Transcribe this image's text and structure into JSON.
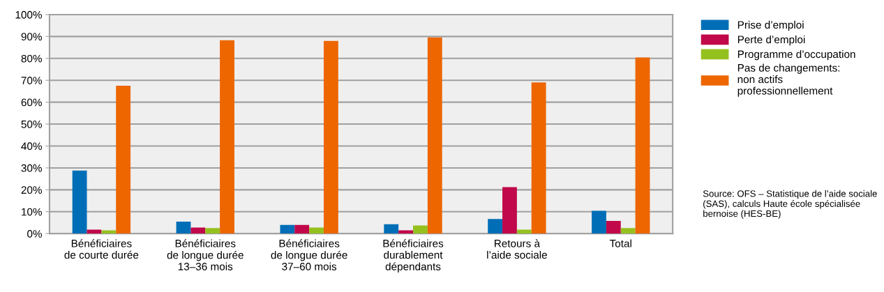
{
  "chart_data": {
    "type": "bar",
    "categories": [
      "Bénéficiaires\nde courte durée",
      "Bénéficiaires\nde longue durée\n13–36 mois",
      "Bénéficiaires\nde longue durée\n37–60 mois",
      "Bénéficiaires\ndurablement\ndépendants",
      "Retours à\nl’aide sociale",
      "Total"
    ],
    "series": [
      {
        "name": "Prise d’emploi",
        "color": "#006eb7",
        "values": [
          28.8,
          5.5,
          4.0,
          4.3,
          6.7,
          10.4
        ]
      },
      {
        "name": "Perte d’emploi",
        "color": "#c0084a",
        "values": [
          1.8,
          2.8,
          4.0,
          1.5,
          21.2,
          5.8
        ]
      },
      {
        "name": "Programme d’occupation",
        "color": "#95c11f",
        "values": [
          1.5,
          2.5,
          2.8,
          3.7,
          1.8,
          2.5
        ]
      },
      {
        "name": "Pas de changements:\nnon actifs\nprofessionnellement",
        "color": "#ed6600",
        "values": [
          67.5,
          88.3,
          88.0,
          89.6,
          69.0,
          80.4
        ]
      }
    ],
    "ylim": [
      0,
      100
    ],
    "yticks": [
      {
        "value": 0,
        "label": "0%"
      },
      {
        "value": 10,
        "label": "10%"
      },
      {
        "value": 20,
        "label": "20%"
      },
      {
        "value": 30,
        "label": "30%"
      },
      {
        "value": 40,
        "label": "40%"
      },
      {
        "value": 50,
        "label": "50%"
      },
      {
        "value": 60,
        "label": "60%"
      },
      {
        "value": 70,
        "label": "70%"
      },
      {
        "value": 80,
        "label": "80%"
      },
      {
        "value": 90,
        "label": "90%"
      },
      {
        "value": 100,
        "label": "100%"
      }
    ],
    "grid": "y",
    "legend": "right",
    "annotations": [
      "Source: OFS – Statistique de l’aide sociale (SAS), calculs Haute école spécialisée bernoise (HES-BE)"
    ]
  }
}
